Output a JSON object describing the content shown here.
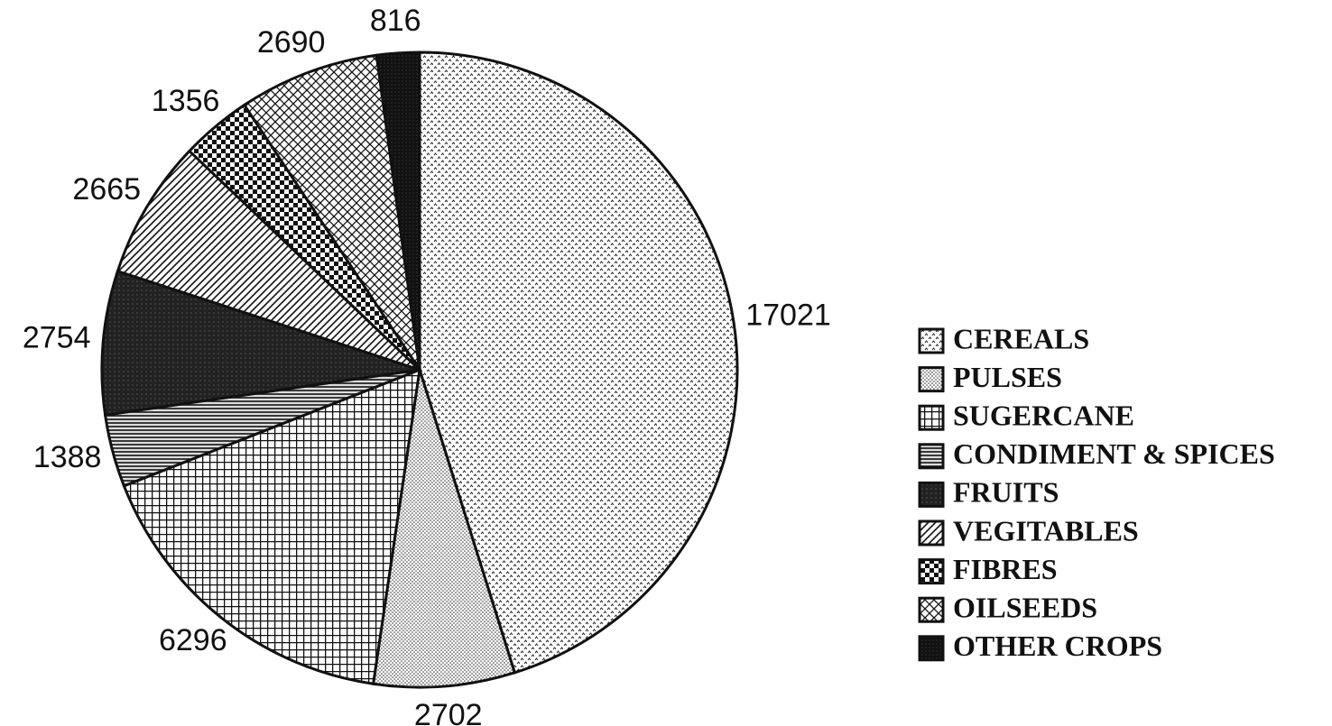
{
  "chart_data": {
    "type": "pie",
    "categories": [
      "CEREALS",
      "PULSES",
      "SUGERCANE",
      "CONDIMENT & SPICES",
      "FRUITS",
      "VEGITABLES",
      "FIBRES",
      "OILSEEDS",
      "OTHER CROPS"
    ],
    "values": [
      17021,
      2702,
      6296,
      1388,
      2754,
      2665,
      1356,
      2690,
      816
    ]
  }
}
